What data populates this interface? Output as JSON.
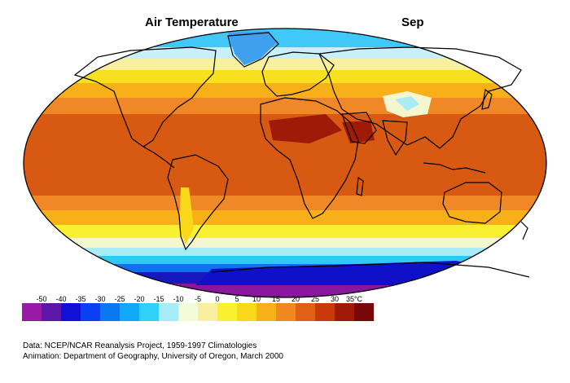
{
  "header": {
    "title": "Air Temperature",
    "month": "Sep"
  },
  "legend": {
    "ticks": [
      "-50",
      "-40",
      "-35",
      "-30",
      "-25",
      "-20",
      "-15",
      "-10",
      "-5",
      "0",
      "5",
      "10",
      "15",
      "20",
      "25",
      "30",
      "35°C"
    ],
    "colors": [
      "#9a1aa8",
      "#5a17a8",
      "#1010d8",
      "#0a40f0",
      "#0a78f0",
      "#10a8f8",
      "#30d0f8",
      "#a8ecf8",
      "#f4fbd8",
      "#f8f0a0",
      "#f8f030",
      "#f8d818",
      "#f8b018",
      "#f08820",
      "#e06018",
      "#c83a0a",
      "#a01a08",
      "#780808"
    ]
  },
  "map": {
    "projection": "Robinson-like world map",
    "palette": {
      "deep_purple": "#8a16a0",
      "dark_blue": "#1010c8",
      "blue": "#1060f0",
      "cyan": "#30c8f8",
      "light_cyan": "#a8ecf8",
      "pale": "#f4f6d0",
      "yellow": "#f8f030",
      "gold": "#f8c818",
      "orange": "#f09020",
      "red_orange": "#d85a12",
      "dark_red": "#a02008"
    }
  },
  "credits": {
    "data": "Data:  NCEP/NCAR Reanalysis Project, 1959-1997 Climatologies",
    "animation": "Animation:  Department of Geography, University of Oregon, March 2000"
  }
}
